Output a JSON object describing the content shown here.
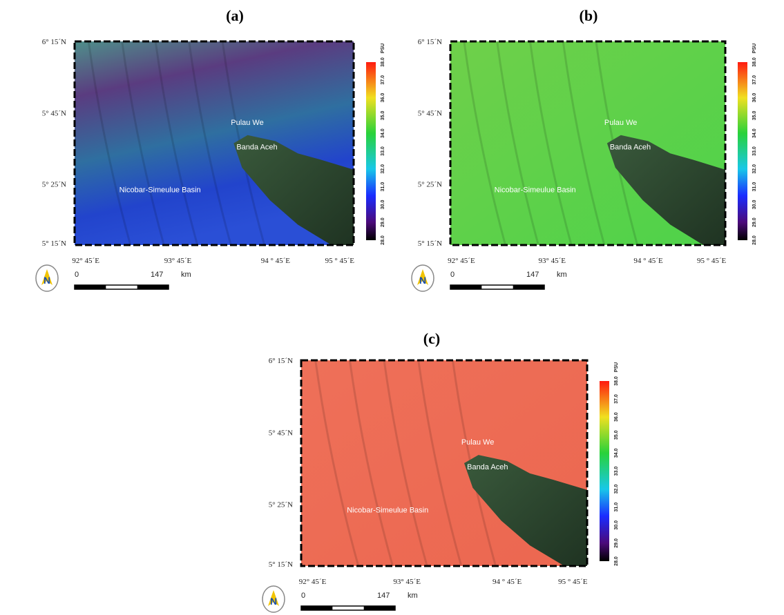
{
  "panels": [
    {
      "label": "(a)",
      "latitudes": [
        "6° 15´N",
        "5° 45´N",
        "5° 25´N",
        "5° 15´N"
      ],
      "longitudes": [
        "92° 45´E",
        "93° 45´E",
        "94 ° 45´E",
        "95 ° 45´E"
      ],
      "places": [
        "Pulau We",
        "Banda Aceh",
        "Nicobar-Simeulue Basin"
      ],
      "colorbar": {
        "unit": "PSU",
        "ticks": [
          "28.0",
          "29.0",
          "30.0",
          "31.0",
          "32.0",
          "33.0",
          "34.0",
          "35.0",
          "36.0",
          "37.0",
          "38.0"
        ]
      },
      "north": "N",
      "scale": {
        "start": "0",
        "end": "147",
        "unit": "km"
      }
    },
    {
      "label": "(b)",
      "latitudes": [
        "6° 15´N",
        "5° 45´N",
        "5° 25´N",
        "5° 15´N"
      ],
      "longitudes": [
        "92° 45´E",
        "93° 45´E",
        "94 ° 45´E",
        "95 ° 45´E"
      ],
      "places": [
        "Pulau We",
        "Banda Aceh",
        "Nicobar-Simeulue Basin"
      ],
      "colorbar": {
        "unit": "PSU",
        "ticks": [
          "28.0",
          "29.0",
          "30.0",
          "31.0",
          "32.0",
          "33.0",
          "34.0",
          "35.0",
          "36.0",
          "37.0",
          "38.0"
        ]
      },
      "north": "N",
      "scale": {
        "start": "0",
        "end": "147",
        "unit": "km"
      }
    },
    {
      "label": "(c)",
      "latitudes": [
        "6° 15´N",
        "5° 45´N",
        "5° 25´N",
        "5° 15´N"
      ],
      "longitudes": [
        "92° 45´E",
        "93° 45´E",
        "94 ° 45´E",
        "95 ° 45´E"
      ],
      "places": [
        "Pulau We",
        "Banda Aceh",
        "Nicobar-Simeulue Basin"
      ],
      "colorbar": {
        "unit": "PSU",
        "ticks": [
          "28.0",
          "29.0",
          "30.0",
          "31.0",
          "32.0",
          "33.0",
          "34.0",
          "35.0",
          "36.0",
          "37.0",
          "38.0"
        ]
      },
      "north": "N",
      "scale": {
        "start": "0",
        "end": "147",
        "unit": "km"
      }
    }
  ]
}
